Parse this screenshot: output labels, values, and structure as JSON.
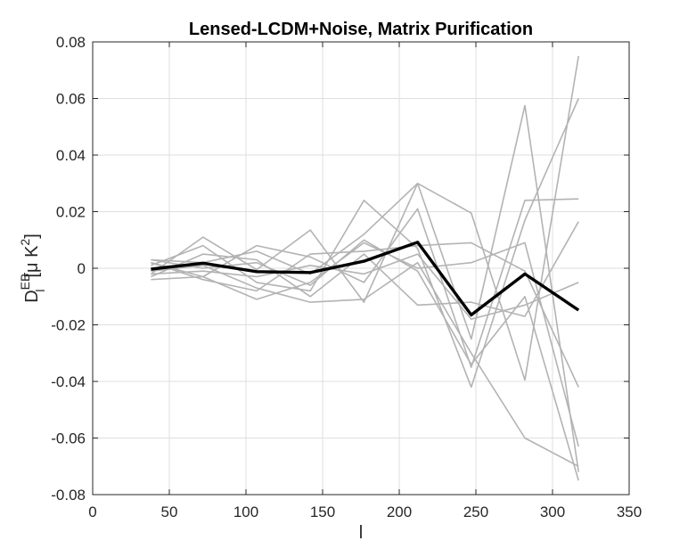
{
  "chart_data": {
    "type": "line",
    "title": "Lensed-LCDM+Noise, Matrix Purification",
    "xlabel": "l",
    "ylabel": {
      "main": "D",
      "superscript": "EB",
      "subscript": "l",
      "unit_open": "[μ K",
      "unit_power": "2",
      "unit_close": "]"
    },
    "xlim": [
      0,
      350
    ],
    "ylim": [
      -0.08,
      0.08
    ],
    "xticks": [
      0,
      50,
      100,
      150,
      200,
      250,
      300,
      350
    ],
    "xtick_labels": [
      "0",
      "50",
      "100",
      "150",
      "200",
      "250",
      "300",
      "350"
    ],
    "yticks": [
      -0.08,
      -0.06,
      -0.04,
      -0.02,
      0,
      0.02,
      0.04,
      0.06,
      0.08
    ],
    "ytick_labels": [
      "-0.08",
      "-0.06",
      "-0.04",
      "-0.02",
      "0",
      "0.02",
      "0.04",
      "0.06",
      "0.08"
    ],
    "grid": true,
    "x": [
      38,
      72,
      107,
      142,
      177,
      212,
      247,
      282,
      317
    ],
    "realization_color": "#b3b3b3",
    "mean_color": "#000000",
    "series": [
      {
        "values": [
          0.003,
          0.002,
          0.006,
          -0.002,
          0.012,
          0.03,
          0.0195,
          -0.0395,
          0.075
        ]
      },
      {
        "values": [
          -0.002,
          0.011,
          -0.0005,
          0.0135,
          -0.012,
          0.03,
          -0.025,
          0.0575,
          -0.072
        ]
      },
      {
        "values": [
          0.001,
          0.008,
          -0.005,
          -0.008,
          0.024,
          0.007,
          -0.042,
          0.017,
          0.06
        ]
      },
      {
        "values": [
          -0.004,
          -0.003,
          0.008,
          0.004,
          -0.005,
          0.021,
          -0.035,
          0.024,
          0.0245
        ]
      },
      {
        "values": [
          0.002,
          -0.003,
          -0.011,
          -0.005,
          0.009,
          0.0,
          0.002,
          0.009,
          -0.063
        ]
      },
      {
        "values": [
          -0.003,
          0.005,
          0.003,
          -0.01,
          0.005,
          -0.013,
          -0.012,
          -0.017,
          0.0165
        ]
      },
      {
        "values": [
          0.002,
          -0.004,
          -0.008,
          0.005,
          0.006,
          0.008,
          0.009,
          -0.001,
          -0.042
        ]
      },
      {
        "values": [
          -0.001,
          0.001,
          -0.007,
          -0.012,
          -0.011,
          0.002,
          -0.03,
          -0.06,
          -0.07
        ]
      },
      {
        "values": [
          0.003,
          0.0,
          0.002,
          -0.006,
          0.01,
          -0.001,
          -0.034,
          -0.01,
          -0.075
        ]
      },
      {
        "values": [
          -0.002,
          -0.001,
          -0.003,
          0.001,
          -0.002,
          0.005,
          -0.018,
          -0.013,
          -0.005
        ]
      }
    ],
    "mean": {
      "values": [
        -0.0003,
        0.0018,
        -0.0012,
        -0.0015,
        0.0025,
        0.0092,
        -0.0165,
        -0.002,
        -0.0148
      ]
    }
  }
}
